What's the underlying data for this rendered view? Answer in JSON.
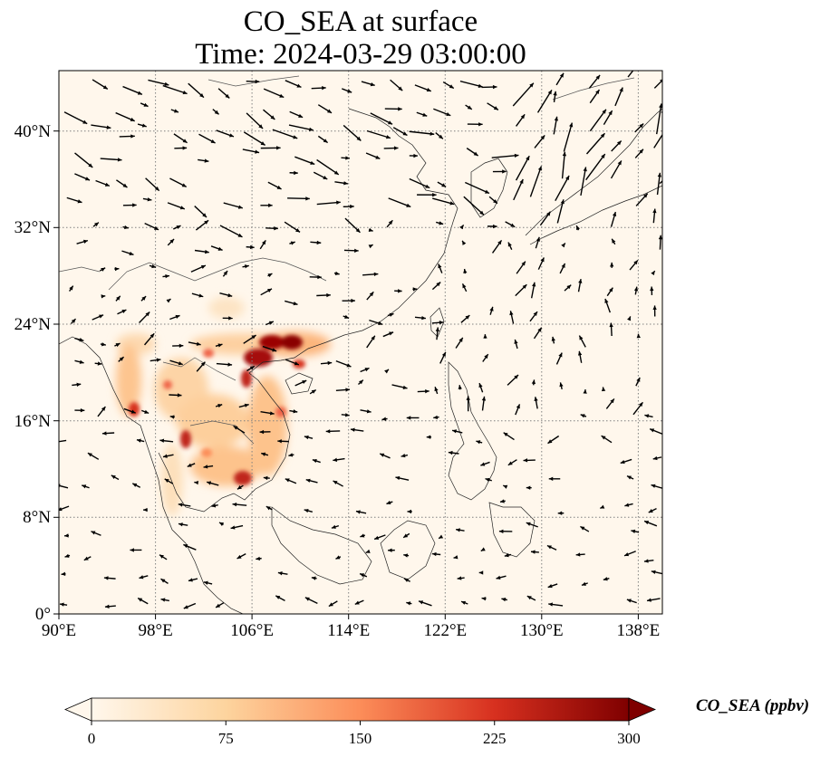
{
  "title": {
    "line1": "CO_SEA at surface",
    "line2": "Time: 2024-03-29 03:00:00"
  },
  "map": {
    "type": "filled contour map with wind vectors",
    "projection": "PlateCarree",
    "lon_range": [
      90,
      140
    ],
    "lat_range": [
      0,
      45
    ],
    "lon_ticks": [
      "90°E",
      "98°E",
      "106°E",
      "114°E",
      "122°E",
      "130°E",
      "138°E"
    ],
    "lat_ticks": [
      "0°",
      "8°N",
      "16°N",
      "24°N",
      "32°N",
      "40°N"
    ],
    "gridlines": true,
    "colormap": "OrRd"
  },
  "colorbar": {
    "label": "CO_SEA (ppbv)",
    "min": 0,
    "max": 300,
    "ticks": [
      "0",
      "75",
      "150",
      "225",
      "300"
    ],
    "extend": "both",
    "colors": [
      "#fff7ec",
      "#fdd49e",
      "#fc8d59",
      "#d7301f",
      "#7f0000"
    ]
  }
}
